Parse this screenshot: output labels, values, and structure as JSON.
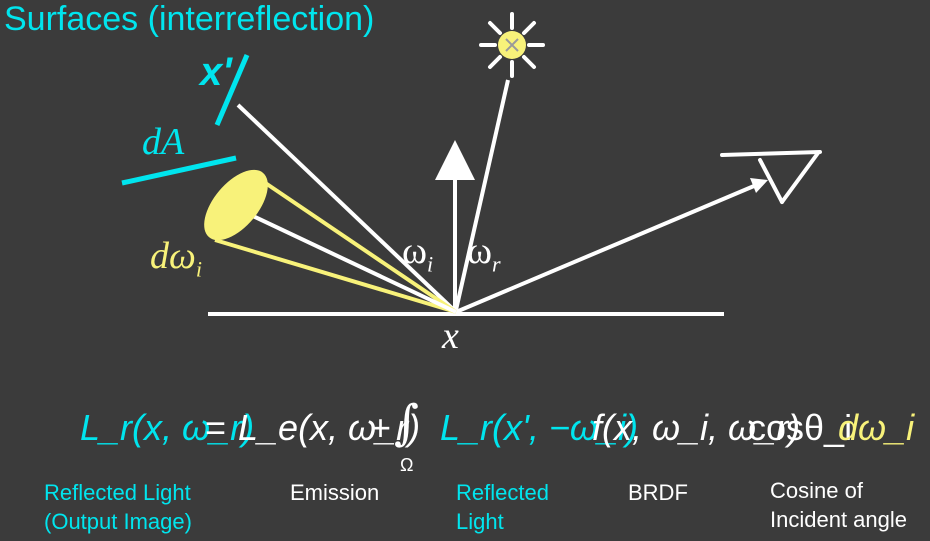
{
  "title": "Surfaces (interreflection)",
  "diagram": {
    "x_prime_label": "x'",
    "dA_label": "dA",
    "d_omega_label": "dω",
    "d_omega_sub": "i",
    "omega_i_label": "ω",
    "omega_i_sub": "i",
    "omega_r_label": "ω",
    "omega_r_sub": "r",
    "x_label": "x"
  },
  "equation": {
    "lhs": "L_r(x, ω_r)",
    "emission": "L_e(x, ω_r)",
    "integral_domain": "Ω",
    "reflected": "L_r(x', −ω_i)",
    "brdf": "f(x, ω_i, ω_r)",
    "cosine": "cosθ_i",
    "solid_angle": "dω_i"
  },
  "annotations": {
    "reflected_light_output": [
      "Reflected Light",
      "(Output Image)"
    ],
    "emission": "Emission",
    "reflected_light": [
      "Reflected",
      "Light"
    ],
    "brdf": "BRDF",
    "cosine": [
      "Cosine of",
      "Incident angle"
    ]
  },
  "colors": {
    "background": "#3b3b3b",
    "cyan": "#00e5ee",
    "yellow": "#f8f27a",
    "white": "#ffffff"
  }
}
